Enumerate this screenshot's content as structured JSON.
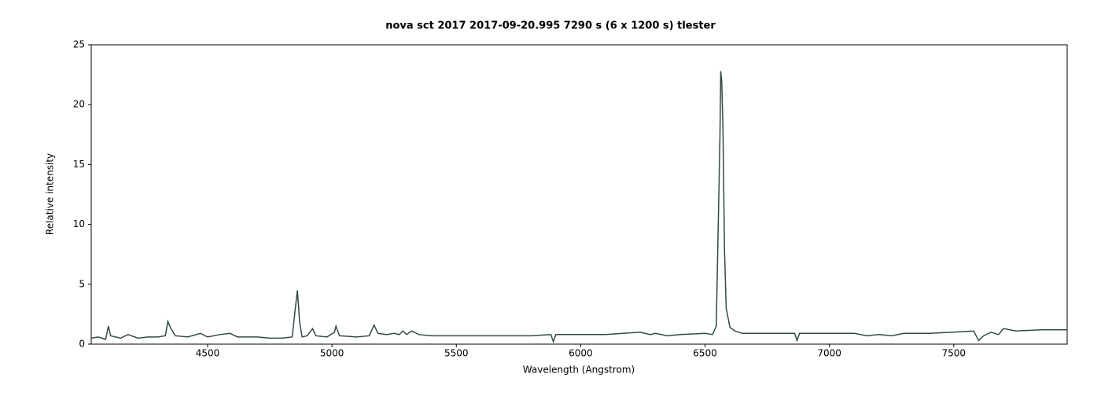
{
  "chart_data": {
    "type": "line",
    "title": "nova sct 2017   2017-09-20.995   7290 s (6 x 1200 s)   tlester",
    "x_label": "Wavelength (Angstrom)",
    "y_label": "Relative intensity",
    "xlim": [
      4032,
      7956
    ],
    "ylim": [
      0,
      25
    ],
    "xticks": [
      4500,
      5000,
      5500,
      6000,
      6500,
      7000,
      7500
    ],
    "yticks": [
      0,
      5,
      10,
      15,
      20,
      25
    ],
    "grid": false,
    "series": [
      {
        "color": "#344848",
        "x": [
          4032,
          4060,
          4090,
          4101,
          4110,
          4150,
          4180,
          4220,
          4260,
          4300,
          4330,
          4340,
          4350,
          4370,
          4420,
          4471,
          4500,
          4550,
          4590,
          4620,
          4700,
          4750,
          4800,
          4840,
          4850,
          4861,
          4870,
          4880,
          4900,
          4922,
          4935,
          4980,
          5010,
          5016,
          5030,
          5100,
          5150,
          5169,
          5185,
          5220,
          5250,
          5270,
          5285,
          5300,
          5320,
          5350,
          5400,
          5500,
          5600,
          5700,
          5800,
          5880,
          5890,
          5900,
          6000,
          6100,
          6240,
          6280,
          6300,
          6350,
          6400,
          6500,
          6530,
          6545,
          6555,
          6560,
          6563,
          6567,
          6572,
          6578,
          6585,
          6600,
          6620,
          6650,
          6700,
          6800,
          6860,
          6870,
          6880,
          6950,
          7000,
          7100,
          7150,
          7200,
          7250,
          7300,
          7400,
          7500,
          7580,
          7600,
          7620,
          7650,
          7680,
          7700,
          7750,
          7850,
          7956
        ],
        "values": [
          0.5,
          0.6,
          0.4,
          1.5,
          0.7,
          0.5,
          0.8,
          0.5,
          0.6,
          0.6,
          0.7,
          1.9,
          1.4,
          0.7,
          0.6,
          0.9,
          0.6,
          0.8,
          0.9,
          0.6,
          0.6,
          0.5,
          0.5,
          0.6,
          2.5,
          4.5,
          1.8,
          0.6,
          0.7,
          1.3,
          0.7,
          0.6,
          1.0,
          1.5,
          0.7,
          0.6,
          0.7,
          1.6,
          0.9,
          0.8,
          0.9,
          0.8,
          1.1,
          0.8,
          1.1,
          0.8,
          0.7,
          0.7,
          0.7,
          0.7,
          0.7,
          0.8,
          0.2,
          0.8,
          0.8,
          0.8,
          1.0,
          0.8,
          0.9,
          0.7,
          0.8,
          0.9,
          0.8,
          1.5,
          12,
          17.5,
          22.8,
          22,
          18,
          8,
          3,
          1.4,
          1.1,
          0.9,
          0.9,
          0.9,
          0.9,
          0.3,
          0.9,
          0.9,
          0.9,
          0.9,
          0.7,
          0.8,
          0.7,
          0.9,
          0.9,
          1.0,
          1.1,
          0.3,
          0.7,
          1.0,
          0.8,
          1.3,
          1.1,
          1.2,
          1.2
        ]
      }
    ]
  }
}
